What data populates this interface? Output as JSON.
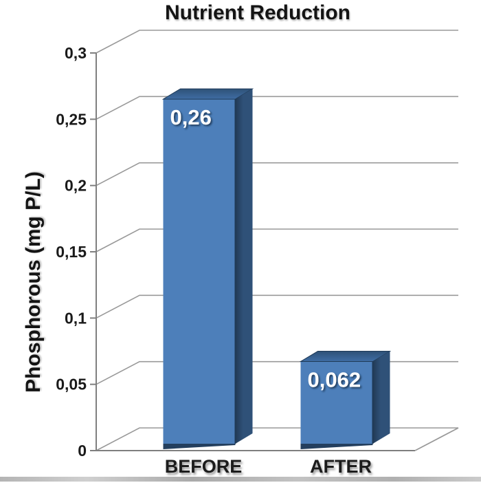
{
  "chart_data": {
    "type": "bar",
    "style": "3d-column",
    "title": "Nutrient Reduction",
    "ylabel": "Phosphorous (mg P/L)",
    "xlabel": "",
    "categories": [
      "BEFORE",
      "AFTER"
    ],
    "values": [
      0.26,
      0.062
    ],
    "value_labels": [
      "0,26",
      "0,062"
    ],
    "y_ticks": [
      {
        "value": 0.3,
        "label": "0,3"
      },
      {
        "value": 0.25,
        "label": "0,25"
      },
      {
        "value": 0.2,
        "label": "0,2"
      },
      {
        "value": 0.15,
        "label": "0,15"
      },
      {
        "value": 0.1,
        "label": "0,1"
      },
      {
        "value": 0.05,
        "label": "0,05"
      },
      {
        "value": 0,
        "label": "0"
      }
    ],
    "ylim": [
      0,
      0.3
    ],
    "grid": true,
    "legend": false,
    "decimal_separator": ","
  },
  "colors": {
    "bar_front": "#4d7fba",
    "bar_top_dark": "#2e5177",
    "bar_top_light": "#3f6da4",
    "bar_side_dark": "#223a55",
    "bar_side": "#2f5178",
    "bar_edge": "#1f3a57",
    "bar_bottom": "#243f5e",
    "gridline": "#999999",
    "axis": "#7f7f7f",
    "text": "#1a1a1a",
    "value_label": "#ffffff"
  }
}
